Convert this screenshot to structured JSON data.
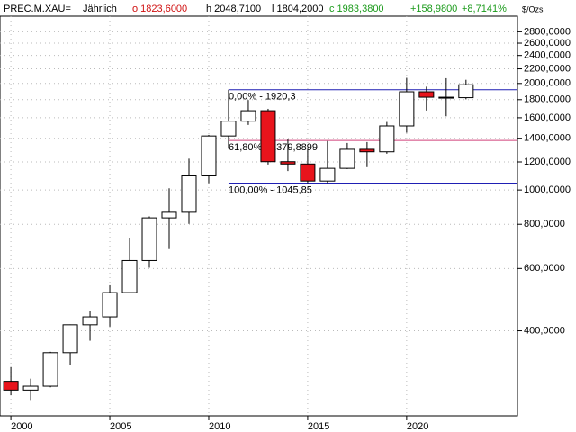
{
  "chart_data": {
    "type": "candlestick",
    "header": {
      "symbol": "PREC.M.XAU=",
      "period": "Jährlich",
      "open": "o 1823,6000",
      "high": "h 2048,7100",
      "low": "l 1804,2000",
      "close": "c 1983,3800",
      "change": "+158,9800",
      "change_pct": "+8,7141%"
    },
    "unit_label": "$/Ozs",
    "x": [
      2000,
      2001,
      2002,
      2003,
      2004,
      2005,
      2006,
      2007,
      2008,
      2009,
      2010,
      2011,
      2012,
      2013,
      2014,
      2015,
      2016,
      2017,
      2018,
      2019,
      2020,
      2021,
      2022,
      2023
    ],
    "open": [
      288,
      272,
      279,
      347,
      416,
      438,
      513,
      632,
      834,
      865,
      1096,
      1421,
      1565,
      1675,
      1202,
      1184,
      1060,
      1151,
      1303,
      1282,
      1517,
      1895,
      1829,
      1823.6
    ],
    "high": [
      316,
      293,
      349,
      417,
      456,
      538,
      730,
      842,
      1011,
      1226,
      1431,
      1921,
      1796,
      1696,
      1392,
      1307,
      1375,
      1358,
      1366,
      1557,
      2075,
      1959,
      2070,
      2048.71
    ],
    "low": [
      263,
      255,
      277,
      320,
      375,
      411,
      512,
      603,
      681,
      802,
      1045,
      1308,
      1527,
      1180,
      1131,
      1046,
      1046,
      1146,
      1160,
      1266,
      1451,
      1677,
      1615,
      1804.2
    ],
    "close": [
      272,
      279,
      347,
      416,
      438,
      513,
      632,
      834,
      865,
      1096,
      1421,
      1565,
      1675,
      1202,
      1184,
      1060,
      1151,
      1303,
      1282,
      1517,
      1895,
      1829,
      1824,
      1983.38
    ],
    "up_color": "#ffffff",
    "down_color": "#e8141c",
    "xlim": [
      1999.45,
      2025.6
    ],
    "xticks": [
      2000,
      2005,
      2010,
      2015,
      2020
    ],
    "ylim": [
      230,
      3100
    ],
    "log_y": true,
    "grid": true,
    "yticks": [
      {
        "value": 400,
        "label": "400,0000"
      },
      {
        "value": 600,
        "label": "600,0000"
      },
      {
        "value": 800,
        "label": "800,0000"
      },
      {
        "value": 1000,
        "label": "1000,0000"
      },
      {
        "value": 1200,
        "label": "1200,0000"
      },
      {
        "value": 1400,
        "label": "1400,0000"
      },
      {
        "value": 1600,
        "label": "1600,0000"
      },
      {
        "value": 1800,
        "label": "1800,0000"
      },
      {
        "value": 2000,
        "label": "2000,0000"
      },
      {
        "value": 2200,
        "label": "2200,0000"
      },
      {
        "value": 2400,
        "label": "2400,0000"
      },
      {
        "value": 2600,
        "label": "2600,0000"
      },
      {
        "value": 2800,
        "label": "2800,0000"
      }
    ],
    "fib_start": 2011,
    "fib_levels": [
      {
        "value": 1920.3,
        "label": "0,00% - 1920,3",
        "color": "#1f1fb4"
      },
      {
        "value": 1379.8899,
        "label": "61,80% - 1379,8899",
        "color": "#d0407a"
      },
      {
        "value": 1045.85,
        "label": "100,00% - 1045,85",
        "color": "#1f1fb4"
      }
    ]
  }
}
